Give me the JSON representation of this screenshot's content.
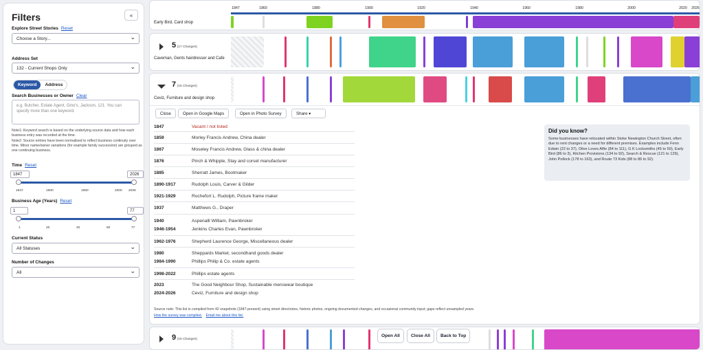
{
  "sidebar": {
    "title": "Filters",
    "collapse_icon": "«",
    "street_stories_label": "Explore Street Stories",
    "street_stories_reset": "Reset",
    "street_stories_value": "Choose a Story...",
    "address_set_label": "Address Set",
    "address_set_value": "132 - Current Shops Only",
    "toggle_keyword": "Keyword",
    "toggle_address": "Address",
    "search_label": "Search Businesses or Owner",
    "search_clear": "Clear",
    "search_placeholder": "e.g. Butcher, Estate Agent, Gino's, Jackson, 121. You can specify more than one keyword.",
    "note1": "Note1: Keyword search is based on the underlying source data and how each business entry was recorded at the time.",
    "note2": "Note2: Source entries have been normalised to reflect business continuity over time. Minor name/owner variations (for example family succession) are grouped as one continuing business.",
    "time_label": "Time",
    "time_reset": "Reset",
    "time_min": "1847",
    "time_max": "2026",
    "time_ticks": [
      "1847",
      "1900",
      "1950",
      "2000",
      "2026"
    ],
    "age_label": "Business Age (Years)",
    "age_reset": "Reset",
    "age_min": "1",
    "age_max": "77",
    "age_ticks": [
      "1",
      "20",
      "40",
      "60",
      "77"
    ],
    "status_label": "Current Status",
    "status_value": "All Statuses",
    "changes_label": "Number of Changes",
    "changes_value": "All"
  },
  "axis": {
    "years": [
      "1847",
      "1860",
      "1880",
      "1900",
      "1920",
      "1940",
      "1960",
      "1980",
      "2000",
      "2020",
      "2026"
    ]
  },
  "rows": {
    "r1": {
      "name": "Early Bird, Card shop"
    },
    "r2": {
      "count": "5",
      "changes": "(17 Changes)",
      "name": "Caveman, Gents hairdresser and Cafe"
    },
    "r3": {
      "count": "7",
      "changes": "(15 Changes)",
      "name": "Ceviz, Furniture and design shop"
    },
    "r4": {
      "count": "9",
      "changes": "(15 Changes)"
    }
  },
  "detail": {
    "close": "Close",
    "maps": "Open in Google Maps",
    "survey": "Open in Photo Survey",
    "share": "Share",
    "events": [
      {
        "y": "1847",
        "t": "Vacant / not listed"
      },
      {
        "y": "1859",
        "t": "Morley Francis Andrew, China dealer"
      },
      {
        "y": "1867",
        "t": "Moseley Francis Andrew, Glass & china dealer"
      },
      {
        "y": "1876",
        "t": "Pinch & Whipple, Stay and corset manufacturer"
      },
      {
        "y": "1885",
        "t": "Sherratt James, Bootmaker"
      },
      {
        "y": "1890-1917",
        "t": "Rudolph Louis, Carver & Gilder"
      },
      {
        "y": "1921-1929",
        "t": "Rochefort L. Rudolph, Picture frame maker"
      },
      {
        "y": "1937",
        "t": "Matthews G., Draper"
      },
      {
        "y": "1940",
        "t": "Aspenalll William, Pawnbroker"
      },
      {
        "y": "1946-1954",
        "t": "Jenkins Charles Evan, Pawnbroker"
      },
      {
        "y": "1962-1976",
        "t": "Shepherd Laurence George, Miscellaneous dealer"
      },
      {
        "y": "1980",
        "t": "Sheppards Market, secondhand goods dealer"
      },
      {
        "y": "1984-1990",
        "t": "Phillips Philip & Co. estate agents"
      },
      {
        "y": "1998-2022",
        "t": "Phillips estate agents"
      },
      {
        "y": "2023",
        "t": "The Good Neighbour Shop, Sustainable menswear boutique"
      },
      {
        "y": "2024-2026",
        "t": "Ceviz, Furniture and design shop"
      }
    ],
    "dyk_title": "Did you know?",
    "dyk_text": "Some businesses have relocated within Stoke Newington Church Street, often due to rent changes or a need for different premises. Examples include Fenn Edwin (22 to 37), Olive Loves Alfie (84 to 111), G K Locksmiths (45 to 50), Early Bird (86 to 3), Kitchen Provisions (134 to 92), Search & Rescue (121 to 129), John Pollock (178 to 163), and Route 73 Kids (88 to 86 to 92).",
    "source_note": "Source note: This list is compiled from 42 snapshots (1847-present) using street directories, historic photos, ongoing documented changes, and occasional community input; gaps reflect unsampled years.",
    "survey_link": "How the survey was compiled.",
    "email_link": "Email me about this list."
  },
  "footer": {
    "open_all": "Open All",
    "close_all": "Close All",
    "back_top": "Back to Top"
  }
}
